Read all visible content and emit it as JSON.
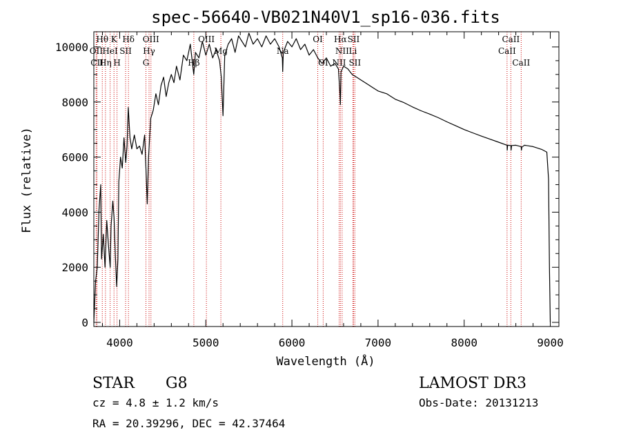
{
  "chart_data": {
    "type": "line",
    "title": "spec-56640-VB021N40V1_sp16-036.fits",
    "xlabel": "Wavelength (Å)",
    "ylabel": "Flux (relative)",
    "xlim": [
      3700,
      9100
    ],
    "ylim": [
      -150,
      10550
    ],
    "xticks": [
      4000,
      5000,
      6000,
      7000,
      8000,
      9000
    ],
    "yticks": [
      0,
      2000,
      4000,
      6000,
      8000,
      10000
    ],
    "series": [
      {
        "name": "flux",
        "points": [
          [
            3700,
            0
          ],
          [
            3720,
            1500
          ],
          [
            3740,
            2000
          ],
          [
            3760,
            4100
          ],
          [
            3780,
            5000
          ],
          [
            3790,
            2300
          ],
          [
            3810,
            3200
          ],
          [
            3830,
            2000
          ],
          [
            3850,
            3700
          ],
          [
            3870,
            2800
          ],
          [
            3890,
            2000
          ],
          [
            3900,
            3500
          ],
          [
            3920,
            4400
          ],
          [
            3935,
            3800
          ],
          [
            3950,
            2400
          ],
          [
            3965,
            1300
          ],
          [
            3980,
            2300
          ],
          [
            3990,
            5100
          ],
          [
            4010,
            6000
          ],
          [
            4030,
            5600
          ],
          [
            4050,
            6700
          ],
          [
            4070,
            5800
          ],
          [
            4085,
            6400
          ],
          [
            4100,
            7800
          ],
          [
            4120,
            6700
          ],
          [
            4140,
            6300
          ],
          [
            4170,
            6800
          ],
          [
            4200,
            6300
          ],
          [
            4230,
            6400
          ],
          [
            4260,
            6100
          ],
          [
            4290,
            6800
          ],
          [
            4305,
            5600
          ],
          [
            4320,
            4300
          ],
          [
            4335,
            6000
          ],
          [
            4360,
            7400
          ],
          [
            4390,
            7700
          ],
          [
            4420,
            8300
          ],
          [
            4450,
            7900
          ],
          [
            4480,
            8600
          ],
          [
            4510,
            8900
          ],
          [
            4540,
            8200
          ],
          [
            4570,
            8700
          ],
          [
            4600,
            9000
          ],
          [
            4630,
            8700
          ],
          [
            4660,
            9300
          ],
          [
            4700,
            8800
          ],
          [
            4740,
            9700
          ],
          [
            4780,
            9500
          ],
          [
            4820,
            10100
          ],
          [
            4860,
            9000
          ],
          [
            4880,
            9800
          ],
          [
            4920,
            9600
          ],
          [
            4960,
            10200
          ],
          [
            5000,
            9700
          ],
          [
            5040,
            10100
          ],
          [
            5080,
            9600
          ],
          [
            5120,
            9900
          ],
          [
            5160,
            9500
          ],
          [
            5180,
            8900
          ],
          [
            5200,
            7500
          ],
          [
            5220,
            9700
          ],
          [
            5260,
            10100
          ],
          [
            5300,
            10300
          ],
          [
            5340,
            9800
          ],
          [
            5380,
            10400
          ],
          [
            5420,
            10200
          ],
          [
            5460,
            10000
          ],
          [
            5500,
            10500
          ],
          [
            5550,
            10100
          ],
          [
            5600,
            10300
          ],
          [
            5650,
            10000
          ],
          [
            5700,
            10400
          ],
          [
            5750,
            10100
          ],
          [
            5800,
            10300
          ],
          [
            5850,
            10000
          ],
          [
            5889,
            9600
          ],
          [
            5893,
            9100
          ],
          [
            5900,
            9800
          ],
          [
            5950,
            10200
          ],
          [
            6000,
            10000
          ],
          [
            6050,
            10300
          ],
          [
            6100,
            9900
          ],
          [
            6150,
            10100
          ],
          [
            6200,
            9700
          ],
          [
            6250,
            9900
          ],
          [
            6300,
            9600
          ],
          [
            6350,
            9400
          ],
          [
            6400,
            9600
          ],
          [
            6450,
            9300
          ],
          [
            6500,
            9400
          ],
          [
            6540,
            9200
          ],
          [
            6558,
            8300
          ],
          [
            6563,
            7900
          ],
          [
            6570,
            9100
          ],
          [
            6600,
            9300
          ],
          [
            6650,
            9200
          ],
          [
            6700,
            9000
          ],
          [
            6750,
            8900
          ],
          [
            6800,
            8800
          ],
          [
            6850,
            8700
          ],
          [
            6900,
            8600
          ],
          [
            6950,
            8500
          ],
          [
            7000,
            8400
          ],
          [
            7050,
            8350
          ],
          [
            7100,
            8300
          ],
          [
            7150,
            8200
          ],
          [
            7200,
            8100
          ],
          [
            7300,
            7980
          ],
          [
            7400,
            7820
          ],
          [
            7500,
            7680
          ],
          [
            7600,
            7560
          ],
          [
            7700,
            7430
          ],
          [
            7800,
            7280
          ],
          [
            7900,
            7140
          ],
          [
            8000,
            7000
          ],
          [
            8100,
            6880
          ],
          [
            8200,
            6760
          ],
          [
            8300,
            6650
          ],
          [
            8400,
            6540
          ],
          [
            8498,
            6430
          ],
          [
            8500,
            6250
          ],
          [
            8505,
            6430
          ],
          [
            8542,
            6420
          ],
          [
            8545,
            6250
          ],
          [
            8550,
            6420
          ],
          [
            8600,
            6430
          ],
          [
            8662,
            6380
          ],
          [
            8665,
            6250
          ],
          [
            8670,
            6360
          ],
          [
            8700,
            6430
          ],
          [
            8800,
            6380
          ],
          [
            8900,
            6280
          ],
          [
            8960,
            6180
          ],
          [
            8980,
            5200
          ],
          [
            8990,
            2000
          ],
          [
            9000,
            0
          ]
        ]
      }
    ],
    "lines": [
      {
        "label": "Hθ",
        "wavelength": 3798,
        "row": 0
      },
      {
        "label": "OII",
        "wavelength": 3727,
        "row": 1
      },
      {
        "label": "CII",
        "wavelength": 3737,
        "row": 2
      },
      {
        "label": "Hη",
        "wavelength": 3835,
        "row": 2
      },
      {
        "label": "HeI",
        "wavelength": 3889,
        "row": 1
      },
      {
        "label": "K",
        "wavelength": 3934,
        "row": 0
      },
      {
        "label": "H",
        "wavelength": 3969,
        "row": 2
      },
      {
        "label": "SII",
        "wavelength": 4069,
        "row": 1
      },
      {
        "label": "Hδ",
        "wavelength": 4102,
        "row": 0
      },
      {
        "label": "OIII",
        "wavelength": 4363,
        "row": 0
      },
      {
        "label": "Hγ",
        "wavelength": 4341,
        "row": 1
      },
      {
        "label": "G",
        "wavelength": 4305,
        "row": 2
      },
      {
        "label": "Hβ",
        "wavelength": 4861,
        "row": 2
      },
      {
        "label": "OIII",
        "wavelength": 5007,
        "row": 0
      },
      {
        "label": "Mg",
        "wavelength": 5175,
        "row": 1
      },
      {
        "label": "Na",
        "wavelength": 5893,
        "row": 1
      },
      {
        "label": "OI",
        "wavelength": 6300,
        "row": 0
      },
      {
        "label": "OI",
        "wavelength": 6363,
        "row": 2
      },
      {
        "label": "Hα",
        "wavelength": 6563,
        "row": 0
      },
      {
        "label": "NII",
        "wavelength": 6583,
        "row": 1
      },
      {
        "label": "NII",
        "wavelength": 6548,
        "row": 2
      },
      {
        "label": "SII",
        "wavelength": 6716,
        "row": 0
      },
      {
        "label": "Li",
        "wavelength": 6708,
        "row": 1
      },
      {
        "label": "SII",
        "wavelength": 6731,
        "row": 2
      },
      {
        "label": "CaII",
        "wavelength": 8542,
        "row": 0
      },
      {
        "label": "CaII",
        "wavelength": 8498,
        "row": 1
      },
      {
        "label": "CaII",
        "wavelength": 8662,
        "row": 2
      }
    ]
  },
  "info": {
    "class_label": "STAR",
    "subclass": "G8",
    "survey": "LAMOST DR3",
    "cz": "cz = 4.8 ± 1.2 km/s",
    "obs_date": "Obs-Date: 20131213",
    "coords": "RA =  20.39296, DEC =  42.37464"
  },
  "colors": {
    "line_marker": "#cc0000",
    "flux": "#000000"
  }
}
